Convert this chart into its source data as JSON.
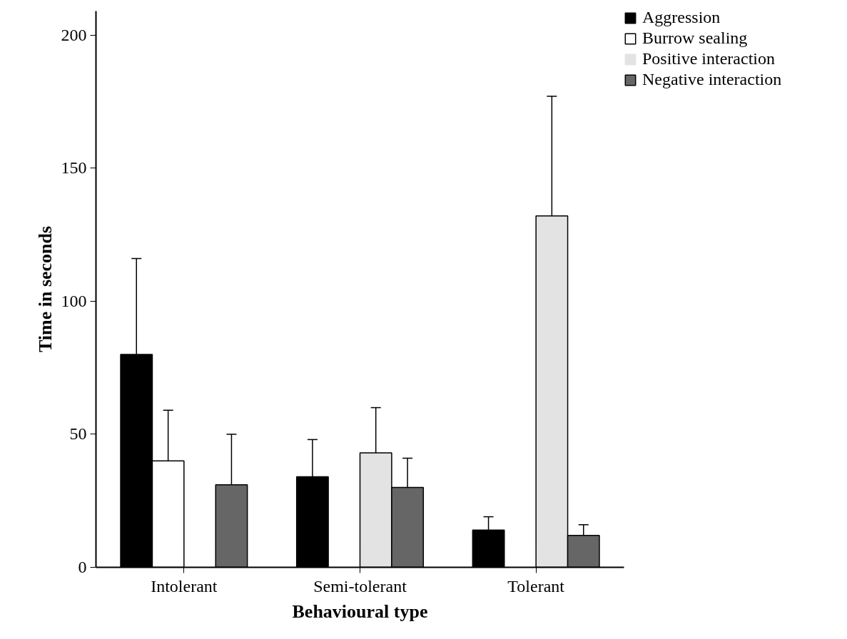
{
  "chart_data": {
    "type": "bar",
    "xlabel": "Behavioural type",
    "ylabel": "Time in seconds",
    "categories": [
      "Intolerant",
      "Semi-tolerant",
      "Tolerant"
    ],
    "series": [
      {
        "name": "Aggression",
        "color": "#000000",
        "values": [
          80,
          34,
          14
        ],
        "errors": [
          36,
          14,
          5
        ]
      },
      {
        "name": "Burrow sealing",
        "color": "#ffffff",
        "values": [
          40,
          0,
          0
        ],
        "errors": [
          19,
          null,
          null
        ]
      },
      {
        "name": "Positive interaction",
        "color": "#e3e3e3",
        "values": [
          0,
          43,
          132
        ],
        "errors": [
          null,
          17,
          45
        ]
      },
      {
        "name": "Negative interaction",
        "color": "#666666",
        "values": [
          31,
          30,
          12
        ],
        "errors": [
          19,
          11,
          4
        ]
      }
    ],
    "ylim": [
      0,
      209
    ],
    "yticks": [
      0,
      50,
      100,
      150,
      200
    ],
    "grid": false,
    "legend": "top right"
  }
}
